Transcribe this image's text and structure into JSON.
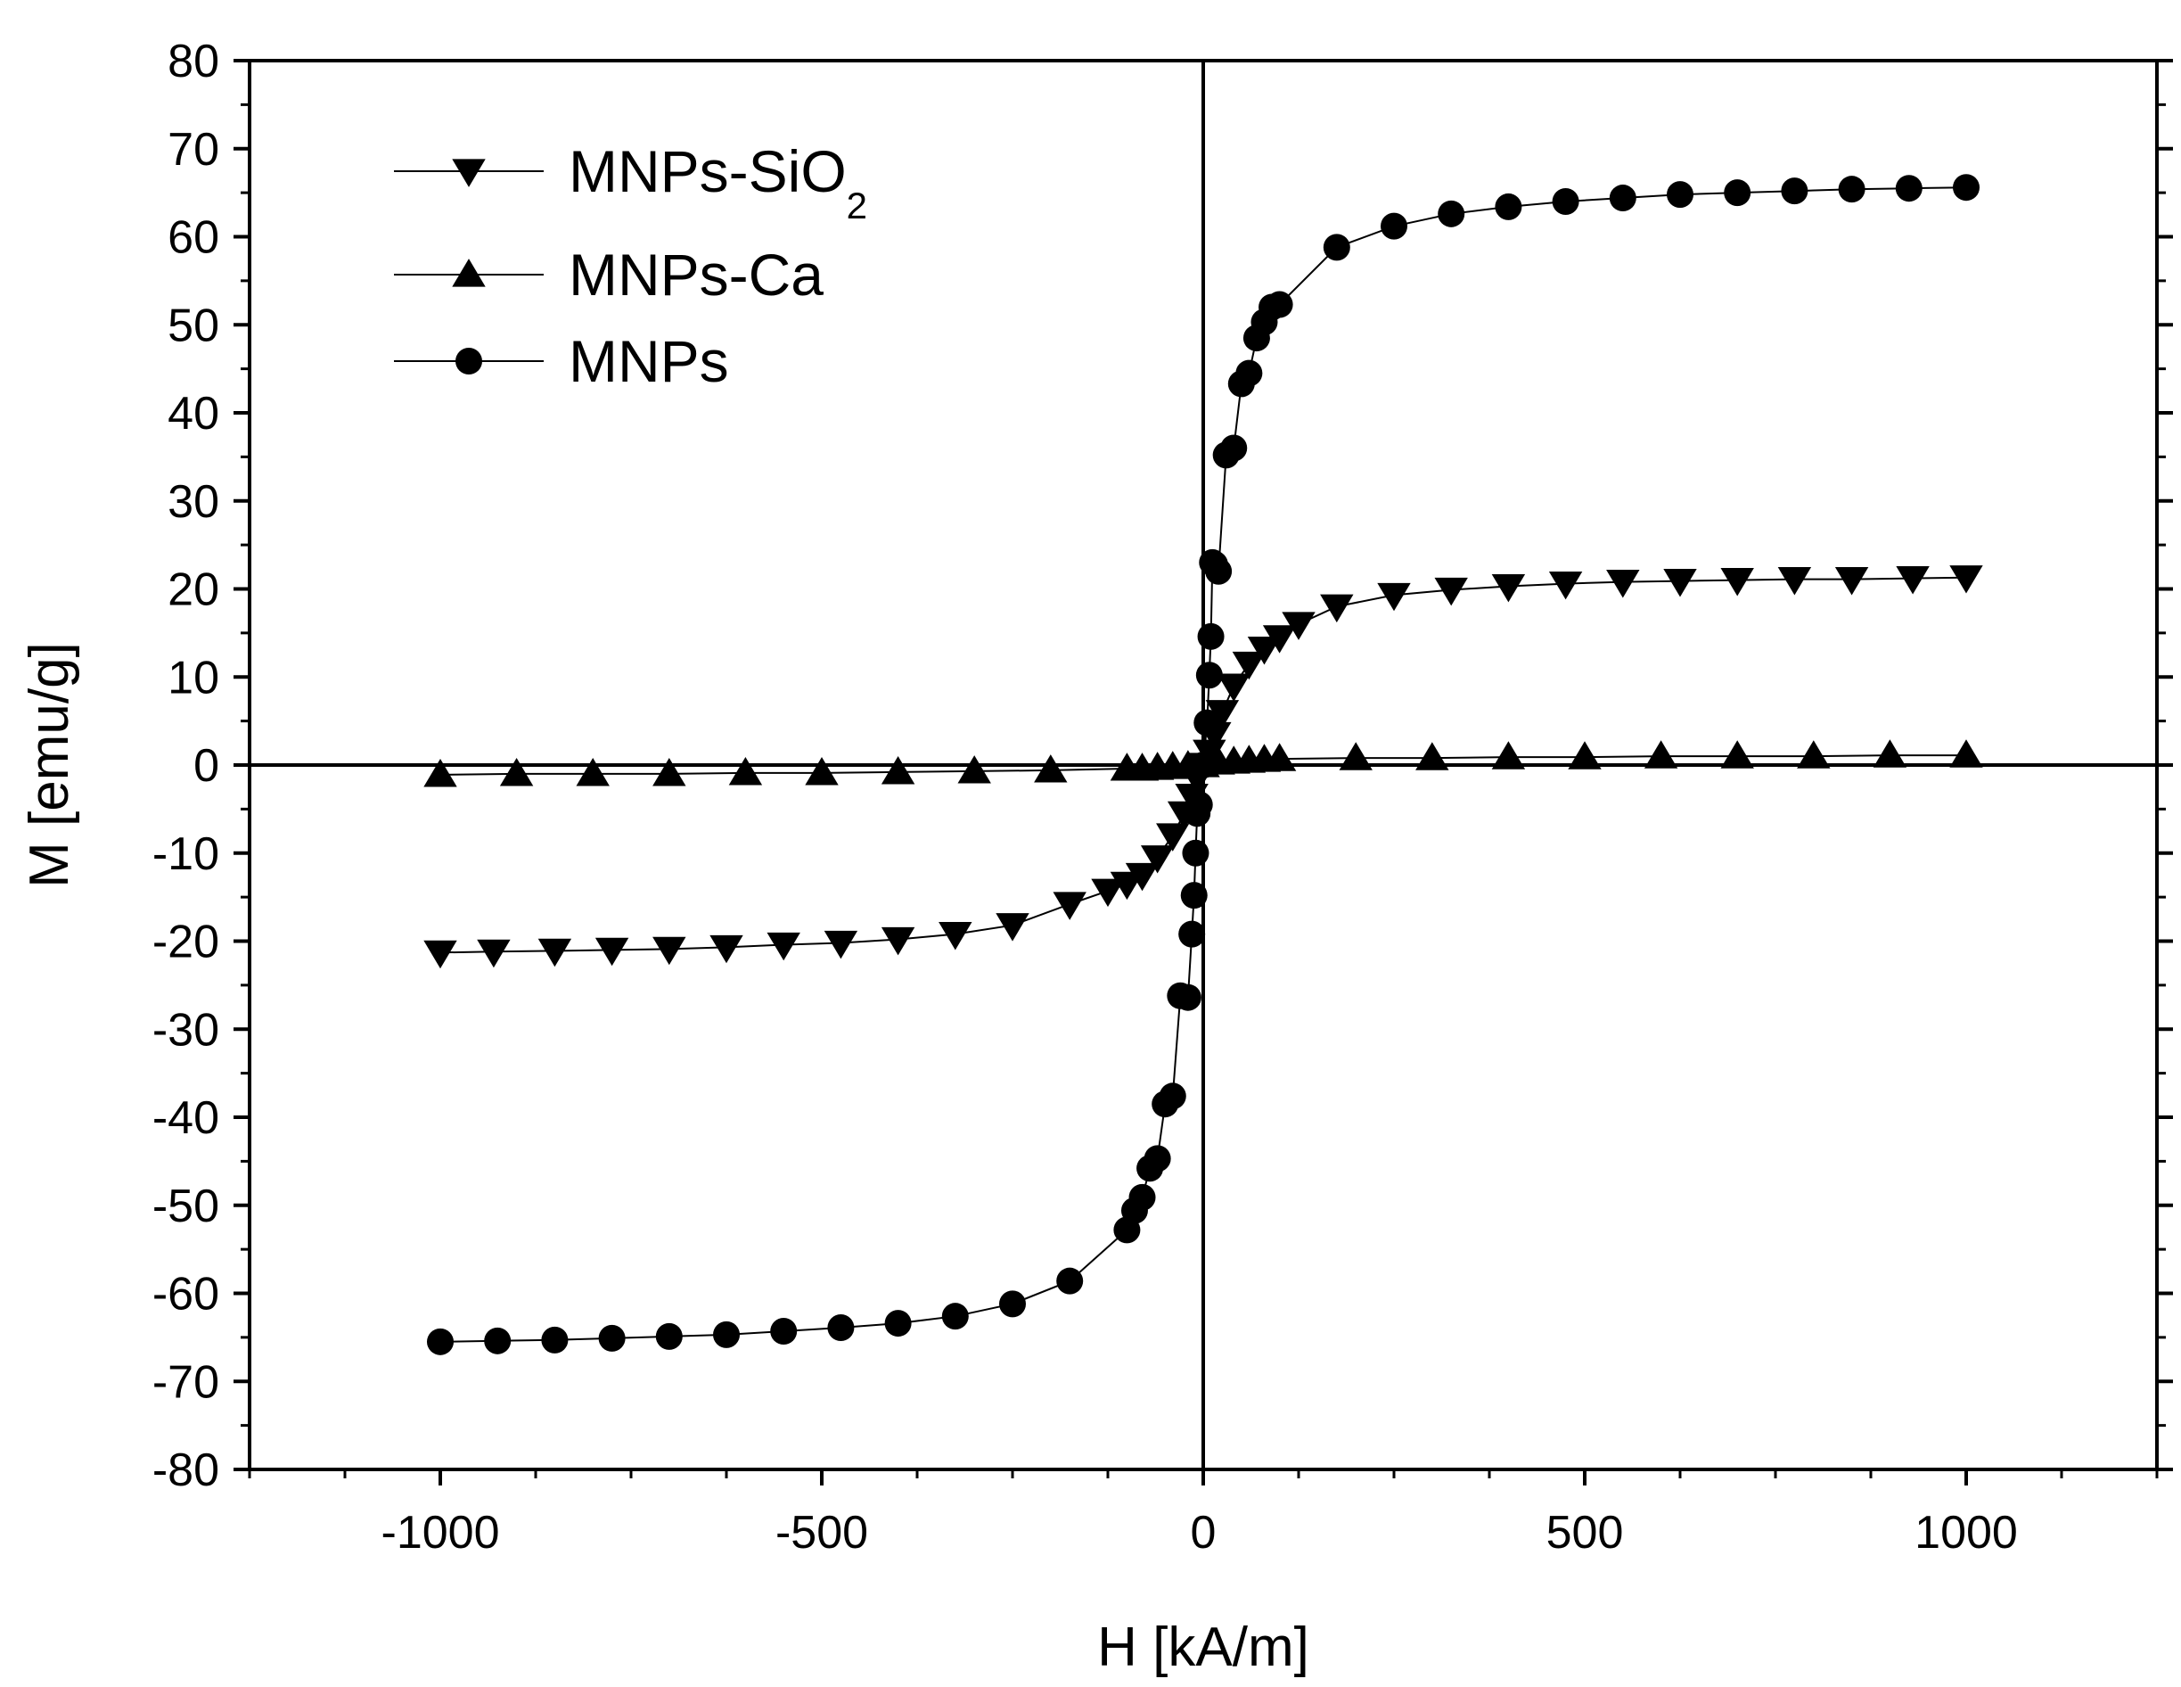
{
  "chart_data": {
    "type": "scatter",
    "title": "",
    "xlabel": "H [kA/m]",
    "ylabel": "M [emu/g]",
    "xlim": [
      -1250,
      1250
    ],
    "ylim": [
      -80,
      80
    ],
    "xticks": [
      -1000,
      -500,
      0,
      500,
      1000
    ],
    "xtick_labels": [
      "-1000",
      "-500",
      "0",
      "500",
      "1000"
    ],
    "yticks": [
      -80,
      -70,
      -60,
      -50,
      -40,
      -30,
      -20,
      -10,
      0,
      10,
      20,
      30,
      40,
      50,
      60,
      70,
      80
    ],
    "ytick_labels": [
      "-80",
      "-70",
      "-60",
      "-50",
      "-40",
      "-30",
      "-20",
      "-10",
      "0",
      "10",
      "20",
      "30",
      "40",
      "50",
      "60",
      "70",
      "80"
    ],
    "grid": false,
    "zero_lines": true,
    "legend_position": "top-left",
    "colors": {
      "line": "#000000",
      "marker": "#000000",
      "background": "#ffffff"
    },
    "legend": [
      {
        "label": "MNPs-SiO",
        "subscript": "2",
        "marker": "triangle-down"
      },
      {
        "label": "MNPs-Ca",
        "subscript": "",
        "marker": "triangle-up"
      },
      {
        "label": "MNPs",
        "subscript": "",
        "marker": "circle"
      }
    ],
    "series": [
      {
        "name": "MNPs-SiO2",
        "marker": "triangle-down",
        "x": [
          -1000,
          -930,
          -850,
          -775,
          -700,
          -625,
          -550,
          -475,
          -400,
          -325,
          -250,
          -175,
          -125,
          -100,
          -80,
          -60,
          -40,
          -25,
          -15,
          -8,
          0,
          8,
          15,
          25,
          40,
          60,
          80,
          100,
          125,
          175,
          250,
          325,
          400,
          475,
          550,
          625,
          700,
          775,
          850,
          930,
          1000
        ],
        "y": [
          -21.3,
          -21.2,
          -21.1,
          -21.0,
          -20.9,
          -20.7,
          -20.4,
          -20.2,
          -19.8,
          -19.2,
          -18.2,
          -15.8,
          -14.3,
          -13.5,
          -12.5,
          -10.5,
          -8.0,
          -5.5,
          -3.5,
          -1.5,
          0,
          1.5,
          3.5,
          6.0,
          9.0,
          11.5,
          13.2,
          14.5,
          16.0,
          18.0,
          19.3,
          19.9,
          20.3,
          20.6,
          20.8,
          20.9,
          21.0,
          21.1,
          21.1,
          21.2,
          21.3
        ]
      },
      {
        "name": "MNPs-Ca",
        "marker": "triangle-up",
        "x": [
          -1000,
          -900,
          -800,
          -700,
          -600,
          -500,
          -400,
          -300,
          -200,
          -100,
          -80,
          -60,
          -40,
          -20,
          0,
          20,
          40,
          60,
          80,
          100,
          200,
          300,
          400,
          500,
          600,
          700,
          800,
          900,
          1000
        ],
        "y": [
          -1.1,
          -1.0,
          -1.0,
          -1.0,
          -0.9,
          -0.9,
          -0.8,
          -0.7,
          -0.6,
          -0.4,
          -0.4,
          -0.3,
          -0.2,
          -0.1,
          0,
          0.3,
          0.4,
          0.5,
          0.6,
          0.7,
          0.8,
          0.8,
          0.9,
          0.9,
          1.0,
          1.0,
          1.0,
          1.1,
          1.1
        ]
      },
      {
        "name": "MNPs",
        "marker": "circle",
        "x": [
          -1000,
          -925,
          -850,
          -775,
          -700,
          -625,
          -550,
          -475,
          -400,
          -325,
          -250,
          -175,
          -100,
          -90,
          -80,
          -70,
          -60,
          -50,
          -40,
          -30,
          -20,
          -15,
          -12,
          -10,
          -8,
          -5,
          0,
          5,
          8,
          10,
          12,
          15,
          20,
          30,
          40,
          50,
          60,
          70,
          80,
          90,
          100,
          175,
          250,
          325,
          400,
          475,
          550,
          625,
          700,
          775,
          850,
          925,
          1000
        ],
        "y": [
          -65.5,
          -65.4,
          -65.3,
          -65.1,
          -64.9,
          -64.7,
          -64.3,
          -63.9,
          -63.4,
          -62.6,
          -61.2,
          -58.6,
          -52.8,
          -50.6,
          -49.1,
          -45.8,
          -44.7,
          -38.5,
          -37.6,
          -26.2,
          -26.4,
          -19.2,
          -14.8,
          -10.0,
          -5.5,
          -4.5,
          0,
          4.8,
          10.2,
          14.6,
          23.0,
          22.8,
          22.0,
          35.2,
          36.0,
          43.3,
          44.5,
          48.5,
          50.3,
          52.0,
          52.3,
          58.8,
          61.2,
          62.6,
          63.4,
          64.0,
          64.4,
          64.8,
          65.0,
          65.2,
          65.4,
          65.5,
          65.6
        ]
      }
    ]
  }
}
